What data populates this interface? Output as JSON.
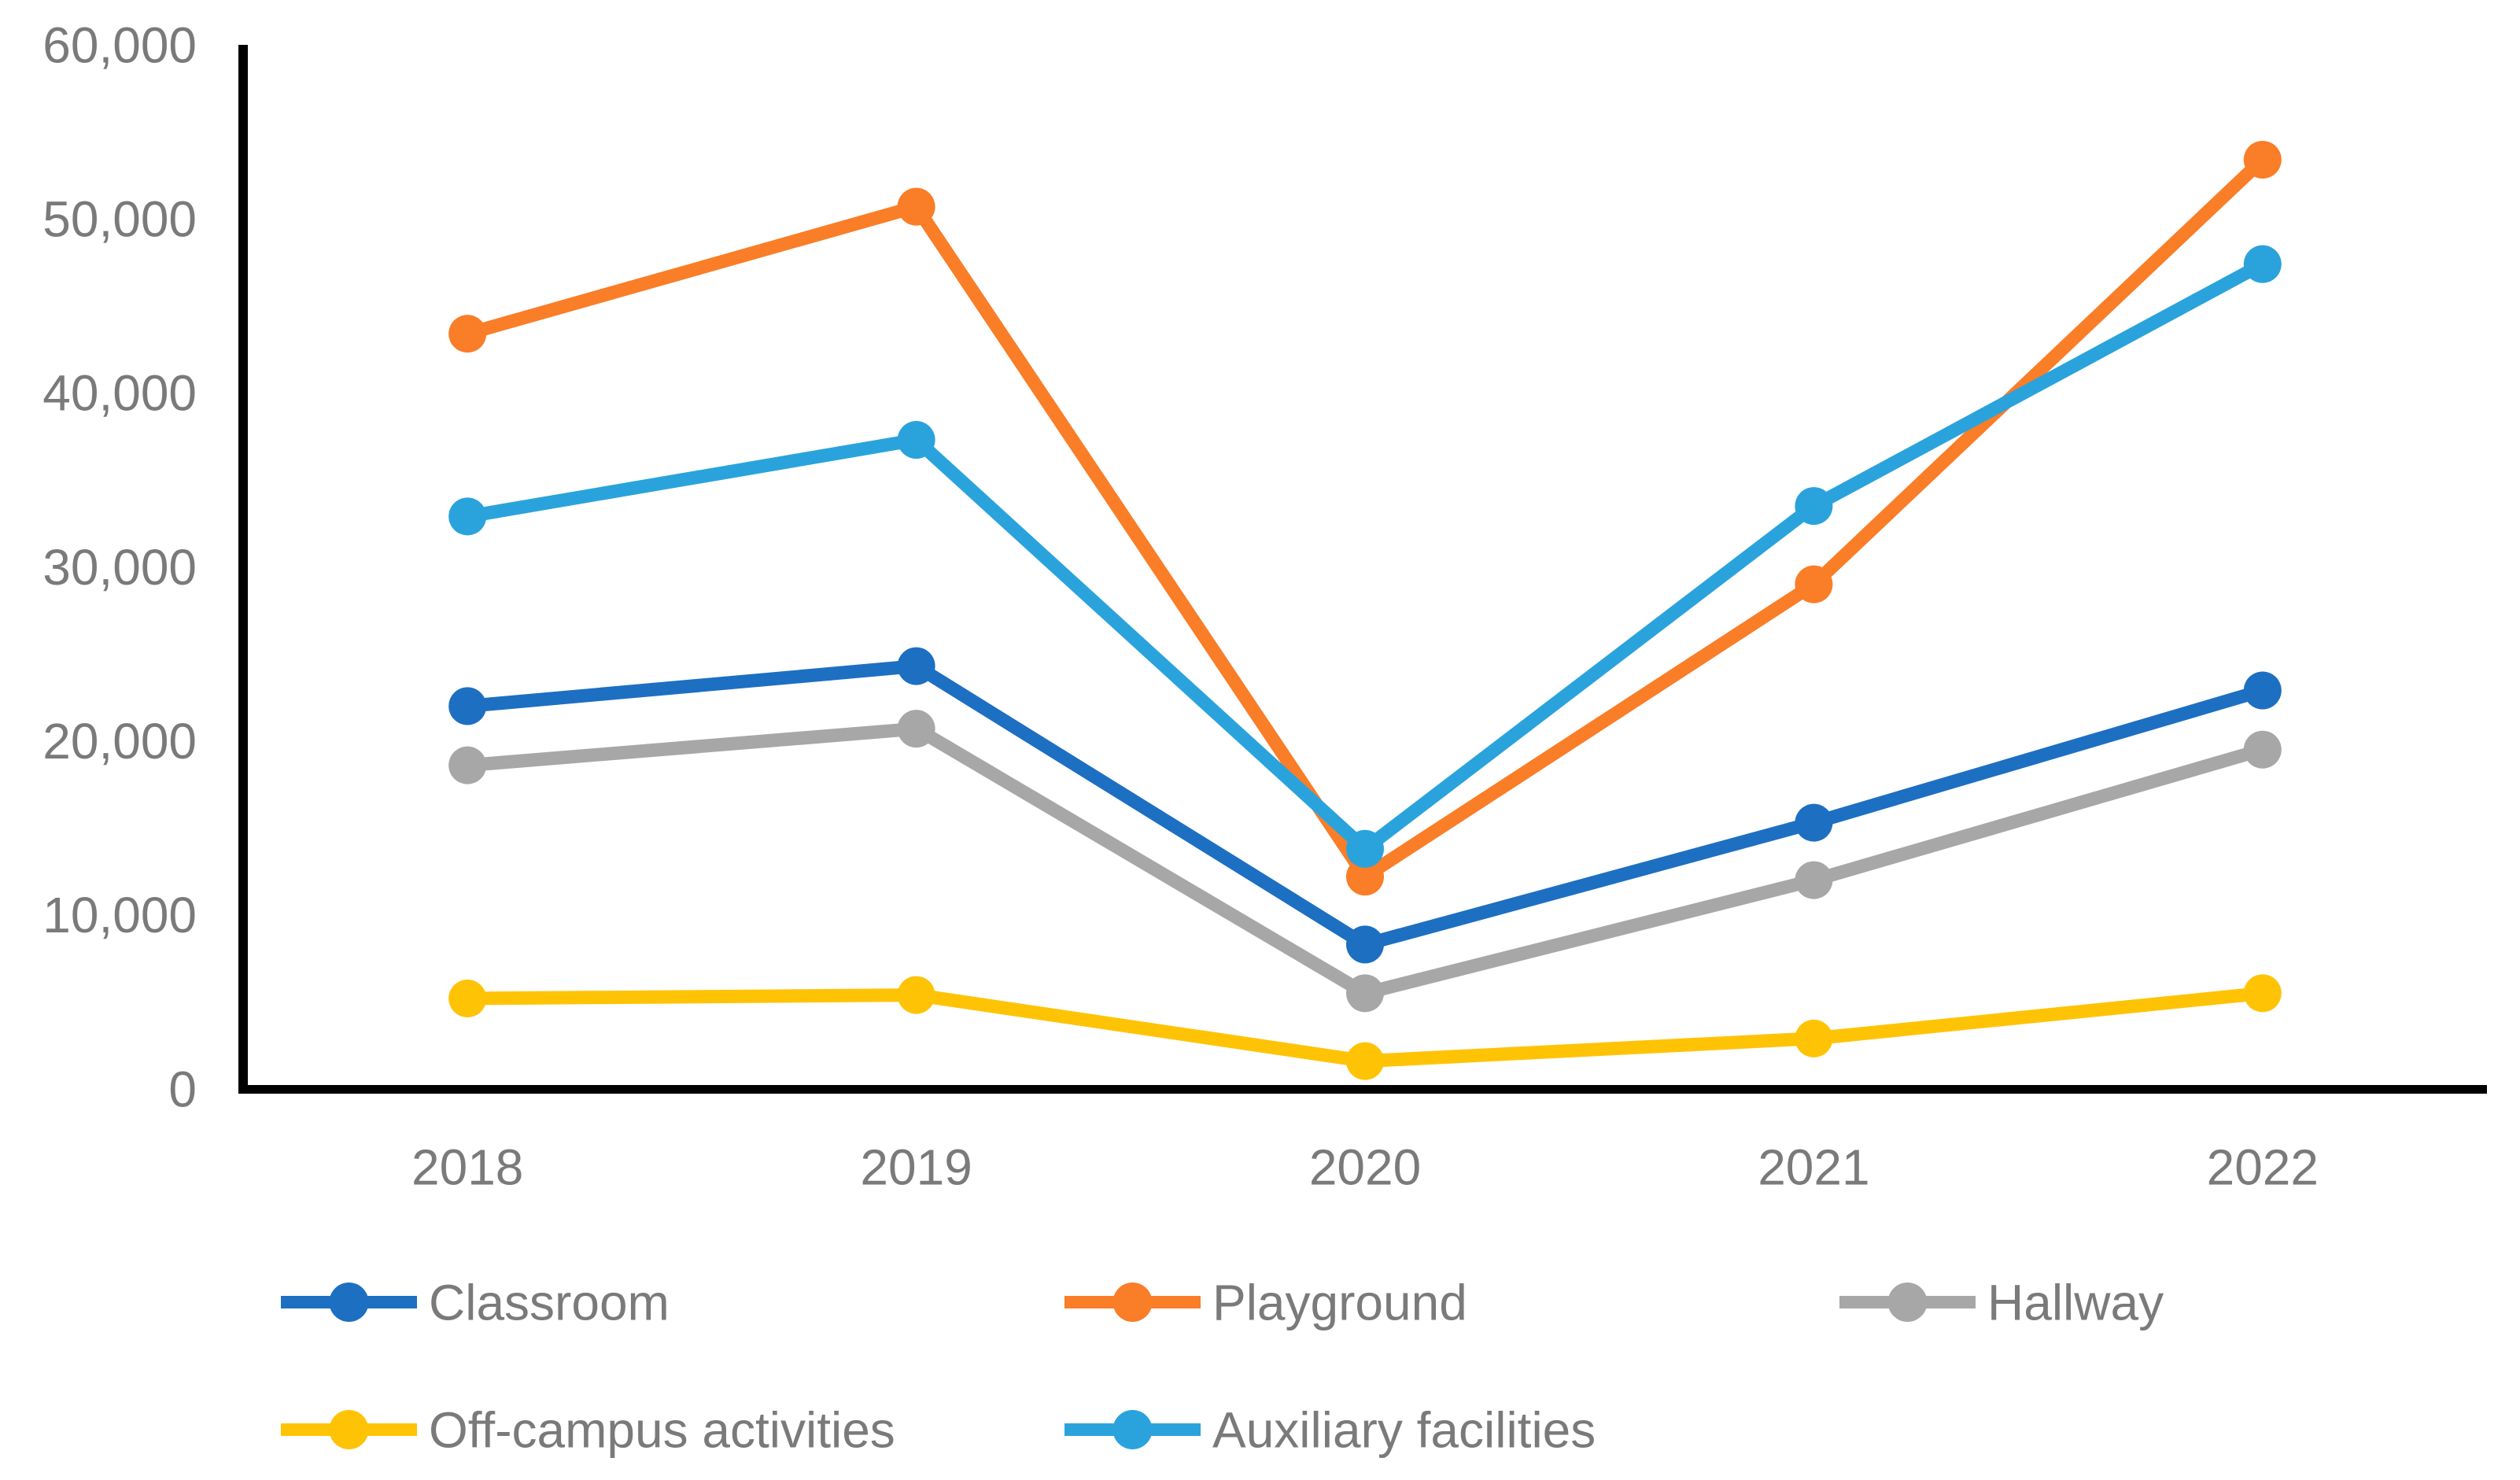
{
  "page": {
    "background_color": "#FFFFFF"
  },
  "chart_data": {
    "type": "line",
    "title": "",
    "xlabel": "",
    "ylabel": "",
    "categories": [
      "2018",
      "2019",
      "2020",
      "2021",
      "2022"
    ],
    "series": [
      {
        "name": "Classroom",
        "color": "#1D6FC2",
        "values": [
          22000,
          24300,
          8300,
          15300,
          22900
        ]
      },
      {
        "name": "Playground",
        "color": "#FA7D28",
        "values": [
          43400,
          50700,
          12200,
          29000,
          53400
        ]
      },
      {
        "name": "Hallway",
        "color": "#A7A7A7",
        "values": [
          18600,
          20700,
          5500,
          12000,
          19500
        ]
      },
      {
        "name": "Off-campus activities",
        "color": "#FFC306",
        "values": [
          5200,
          5400,
          1600,
          2900,
          5500
        ]
      },
      {
        "name": "Auxiliary facilities",
        "color": "#2AA3DC",
        "values": [
          32900,
          37300,
          13800,
          33500,
          47400
        ]
      }
    ],
    "ylim": [
      0,
      60000
    ],
    "ytick_step": 10000,
    "y_tick_labels": [
      "0",
      "10,000",
      "20,000",
      "30,000",
      "40,000",
      "50,000",
      "60,000"
    ],
    "grid": false,
    "marker_style": "circle",
    "legend_position": "bottom",
    "axis_color": "#000000",
    "label_color": "#7A7A7A"
  }
}
